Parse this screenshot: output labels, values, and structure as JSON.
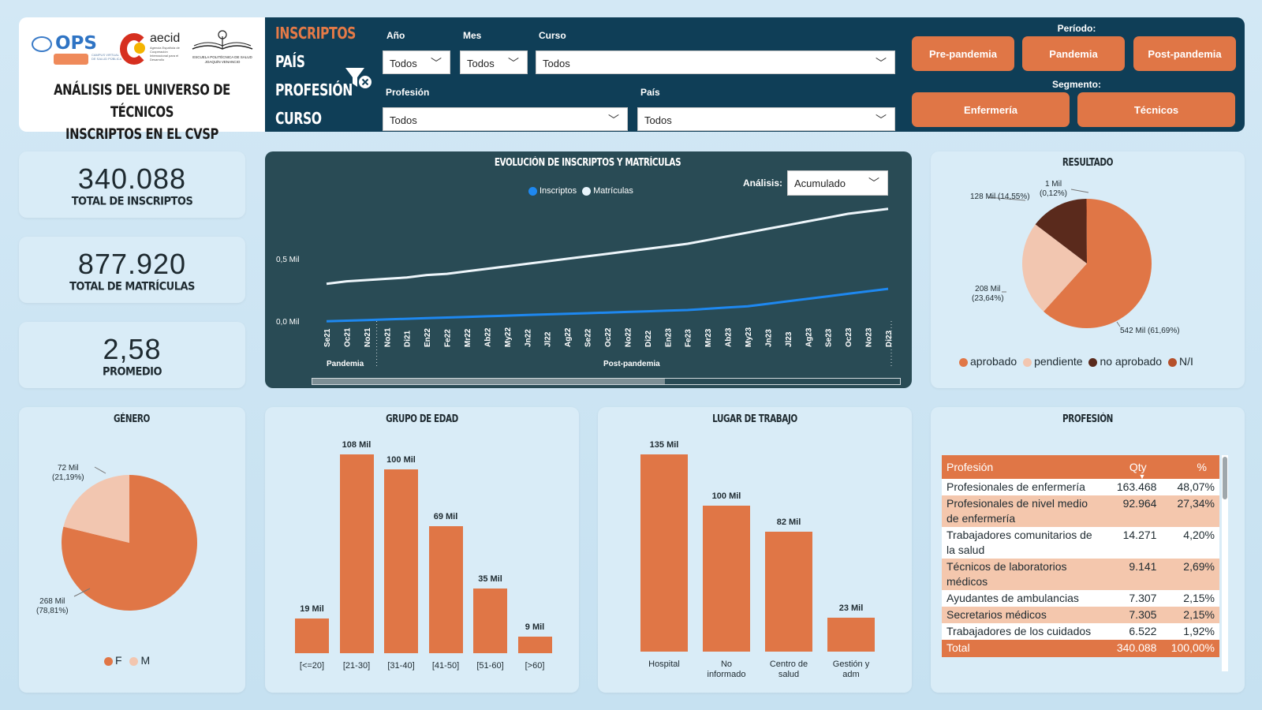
{
  "header": {
    "logos": {
      "ops": "OPS",
      "ops_sub": "CAMPUS VIRTUAL DE SALUD PÚBLICA",
      "aecid": "aecid",
      "aecid_sub": "Agencia Española de Cooperación Internacional para el Desarrollo",
      "escuela": "ESCUELA POLITÉCNICA DE SALUD JOAQUÍN VENANCIO"
    },
    "title_line1": "ANÁLISIS DEL UNIVERSO DE TÉCNICOS",
    "title_line2": "INSCRIPTOS EN EL CVSP",
    "nav": [
      "INSCRIPTOS",
      "PAÍS",
      "PROFESIÓN",
      "CURSO"
    ],
    "filters": {
      "anio": {
        "label": "Año",
        "value": "Todos"
      },
      "mes": {
        "label": "Mes",
        "value": "Todos"
      },
      "curso": {
        "label": "Curso",
        "value": "Todos"
      },
      "profesion": {
        "label": "Profesión",
        "value": "Todos"
      },
      "pais": {
        "label": "País",
        "value": "Todos"
      }
    },
    "periodo_label": "Período:",
    "periodo_buttons": [
      "Pre-pandemia",
      "Pandemia",
      "Post-pandemia"
    ],
    "segmento_label": "Segmento:",
    "segmento_buttons": [
      "Enfermería",
      "Técnicos"
    ]
  },
  "kpis": [
    {
      "value": "340.088",
      "label": "TOTAL DE INSCRIPTOS"
    },
    {
      "value": "877.920",
      "label": "TOTAL DE MATRÍCULAS"
    },
    {
      "value": "2,58",
      "label": "PROMEDIO"
    }
  ],
  "evolucion": {
    "title": "EVOLUCIÓN DE INSCRIPTOS Y MATRÍCULAS",
    "analysis_label": "Análisis:",
    "analysis_value": "Acumulado",
    "legend": [
      {
        "name": "Inscriptos",
        "color": "#1e88f0"
      },
      {
        "name": "Matrículas",
        "color": "#e8f4fb"
      }
    ],
    "y_ticks": [
      "0,5 Mil",
      "0,0 Mil"
    ],
    "x_labels": [
      "Se21",
      "Oc21",
      "No21",
      "No21",
      "Di21",
      "En22",
      "Fe22",
      "Mr22",
      "Ab22",
      "My22",
      "Jn22",
      "Jl22",
      "Ag22",
      "Se22",
      "Oc22",
      "No22",
      "Di22",
      "En23",
      "Fe23",
      "Mr23",
      "Ab23",
      "My23",
      "Jn23",
      "Jl23",
      "Ag23",
      "Se23",
      "Oc23",
      "No23",
      "Di23"
    ],
    "period_labels": [
      "Pandemia",
      "Post-pandemia"
    ]
  },
  "chart_data": [
    {
      "type": "line",
      "title": "EVOLUCIÓN DE INSCRIPTOS Y MATRÍCULAS",
      "x": [
        "Se21",
        "Oc21",
        "No21",
        "No21",
        "Di21",
        "En22",
        "Fe22",
        "Mr22",
        "Ab22",
        "My22",
        "Jn22",
        "Jl22",
        "Ag22",
        "Se22",
        "Oc22",
        "No22",
        "Di22",
        "En23",
        "Fe23",
        "Mr23",
        "Ab23",
        "My23",
        "Jn23",
        "Jl23",
        "Ag23",
        "Se23",
        "Oc23",
        "No23",
        "Di23"
      ],
      "series": [
        {
          "name": "Inscriptos",
          "values": [
            0.03,
            0.035,
            0.04,
            0.045,
            0.05,
            0.055,
            0.06,
            0.065,
            0.07,
            0.075,
            0.08,
            0.085,
            0.09,
            0.095,
            0.1,
            0.105,
            0.11,
            0.115,
            0.12,
            0.13,
            0.14,
            0.15,
            0.17,
            0.19,
            0.21,
            0.23,
            0.25,
            0.27,
            0.29
          ]
        },
        {
          "name": "Matrículas",
          "values": [
            0.33,
            0.35,
            0.36,
            0.37,
            0.38,
            0.4,
            0.41,
            0.43,
            0.45,
            0.47,
            0.49,
            0.51,
            0.53,
            0.55,
            0.57,
            0.59,
            0.61,
            0.63,
            0.65,
            0.68,
            0.71,
            0.74,
            0.77,
            0.8,
            0.83,
            0.86,
            0.89,
            0.91,
            0.93
          ]
        }
      ],
      "ylim": [
        0,
        1.0
      ]
    },
    {
      "type": "pie",
      "title": "RESULTADO",
      "labels": [
        "aprobado",
        "pendiente",
        "no aprobado",
        "N/I"
      ],
      "values": [
        61.69,
        23.64,
        14.55,
        0.12
      ],
      "data_labels": [
        "542 Mil (61,69%)",
        "208 Mil (23,64%)",
        "128 Mil (14,55%)",
        "1 Mil (0,12%)"
      ],
      "colors": [
        "#e07646",
        "#f2c6b0",
        "#5a2a1c",
        "#b5502b"
      ]
    },
    {
      "type": "pie",
      "title": "GÉNERO",
      "labels": [
        "F",
        "M"
      ],
      "values": [
        78.81,
        21.19
      ],
      "data_labels": [
        "268 Mil (78,81%)",
        "72 Mil (21,19%)"
      ],
      "colors": [
        "#e07646",
        "#f2c6b0"
      ]
    },
    {
      "type": "bar",
      "title": "GRUPO DE EDAD",
      "categories": [
        "[<=20]",
        "[21-30]",
        "[31-40]",
        "[41-50]",
        "[51-60]",
        "[>60]"
      ],
      "values": [
        19,
        108,
        100,
        69,
        35,
        9
      ],
      "data_labels": [
        "19 Mil",
        "108 Mil",
        "100 Mil",
        "69 Mil",
        "35 Mil",
        "9 Mil"
      ]
    },
    {
      "type": "bar",
      "title": "LUGAR DE TRABAJO",
      "categories": [
        "Hospital",
        "No informado",
        "Centro de salud",
        "Gestión y adm"
      ],
      "values": [
        135,
        100,
        82,
        23
      ],
      "data_labels": [
        "135 Mil",
        "100 Mil",
        "82 Mil",
        "23 Mil"
      ]
    },
    {
      "type": "table",
      "title": "PROFESIÓN",
      "columns": [
        "Profesión",
        "Qty",
        "%"
      ],
      "rows": [
        [
          "Profesionales de enfermería",
          "163.468",
          "48,07%"
        ],
        [
          "Profesionales de nivel medio de enfermería",
          "92.964",
          "27,34%"
        ],
        [
          "Trabajadores comunitarios de la salud",
          "14.271",
          "4,20%"
        ],
        [
          "Técnicos de laboratorios médicos",
          "9.141",
          "2,69%"
        ],
        [
          "Ayudantes de ambulancias",
          "7.307",
          "2,15%"
        ],
        [
          "Secretarios médicos",
          "7.305",
          "2,15%"
        ],
        [
          "Trabajadores de los cuidados",
          "6.522",
          "1,92%"
        ]
      ],
      "total": [
        "Total",
        "340.088",
        "100,00%"
      ]
    }
  ],
  "resultado": {
    "title": "RESULTADO",
    "legend": [
      {
        "name": "aprobado",
        "color": "#e07646"
      },
      {
        "name": "pendiente",
        "color": "#f2c6b0"
      },
      {
        "name": "no aprobado",
        "color": "#5a2a1c"
      },
      {
        "name": "N/I",
        "color": "#b5502b"
      }
    ],
    "labels": {
      "l1": "542 Mil (61,69%)",
      "l2a": "208 Mil",
      "l2b": "(23,64%)",
      "l3": "128 Mil (14,55%)",
      "l4a": "1 Mil",
      "l4b": "(0,12%)"
    }
  },
  "genero": {
    "title": "GÉNERO",
    "legend": [
      {
        "name": "F",
        "color": "#e07646"
      },
      {
        "name": "M",
        "color": "#f2c6b0"
      }
    ],
    "labels": {
      "f_a": "268 Mil",
      "f_b": "(78,81%)",
      "m_a": "72 Mil",
      "m_b": "(21,19%)"
    }
  },
  "edad": {
    "title": "GRUPO DE EDAD"
  },
  "trabajo": {
    "title": "LUGAR DE TRABAJO",
    "cat_lines": [
      [
        "Hospital"
      ],
      [
        "No",
        "informado"
      ],
      [
        "Centro de",
        "salud"
      ],
      [
        "Gestión y",
        "adm"
      ]
    ]
  },
  "profesion": {
    "title": "PROFESIÓN",
    "head": {
      "c1": "Profesión",
      "c2": "Qty",
      "c3": "%"
    },
    "rows": [
      {
        "name": "Profesionales de enfermería",
        "qty": "163.468",
        "pct": "48,07%"
      },
      {
        "name": "Profesionales de nivel medio de enfermería",
        "qty": "92.964",
        "pct": "27,34%"
      },
      {
        "name": "Trabajadores comunitarios de la salud",
        "qty": "14.271",
        "pct": "4,20%"
      },
      {
        "name": "Técnicos de laboratorios médicos",
        "qty": "9.141",
        "pct": "2,69%"
      },
      {
        "name": "Ayudantes de ambulancias",
        "qty": "7.307",
        "pct": "2,15%"
      },
      {
        "name": "Secretarios médicos",
        "qty": "7.305",
        "pct": "2,15%"
      },
      {
        "name": "Trabajadores de los cuidados",
        "qty": "6.522",
        "pct": "1,92%"
      }
    ],
    "total": {
      "name": "Total",
      "qty": "340.088",
      "pct": "100,00%"
    }
  }
}
